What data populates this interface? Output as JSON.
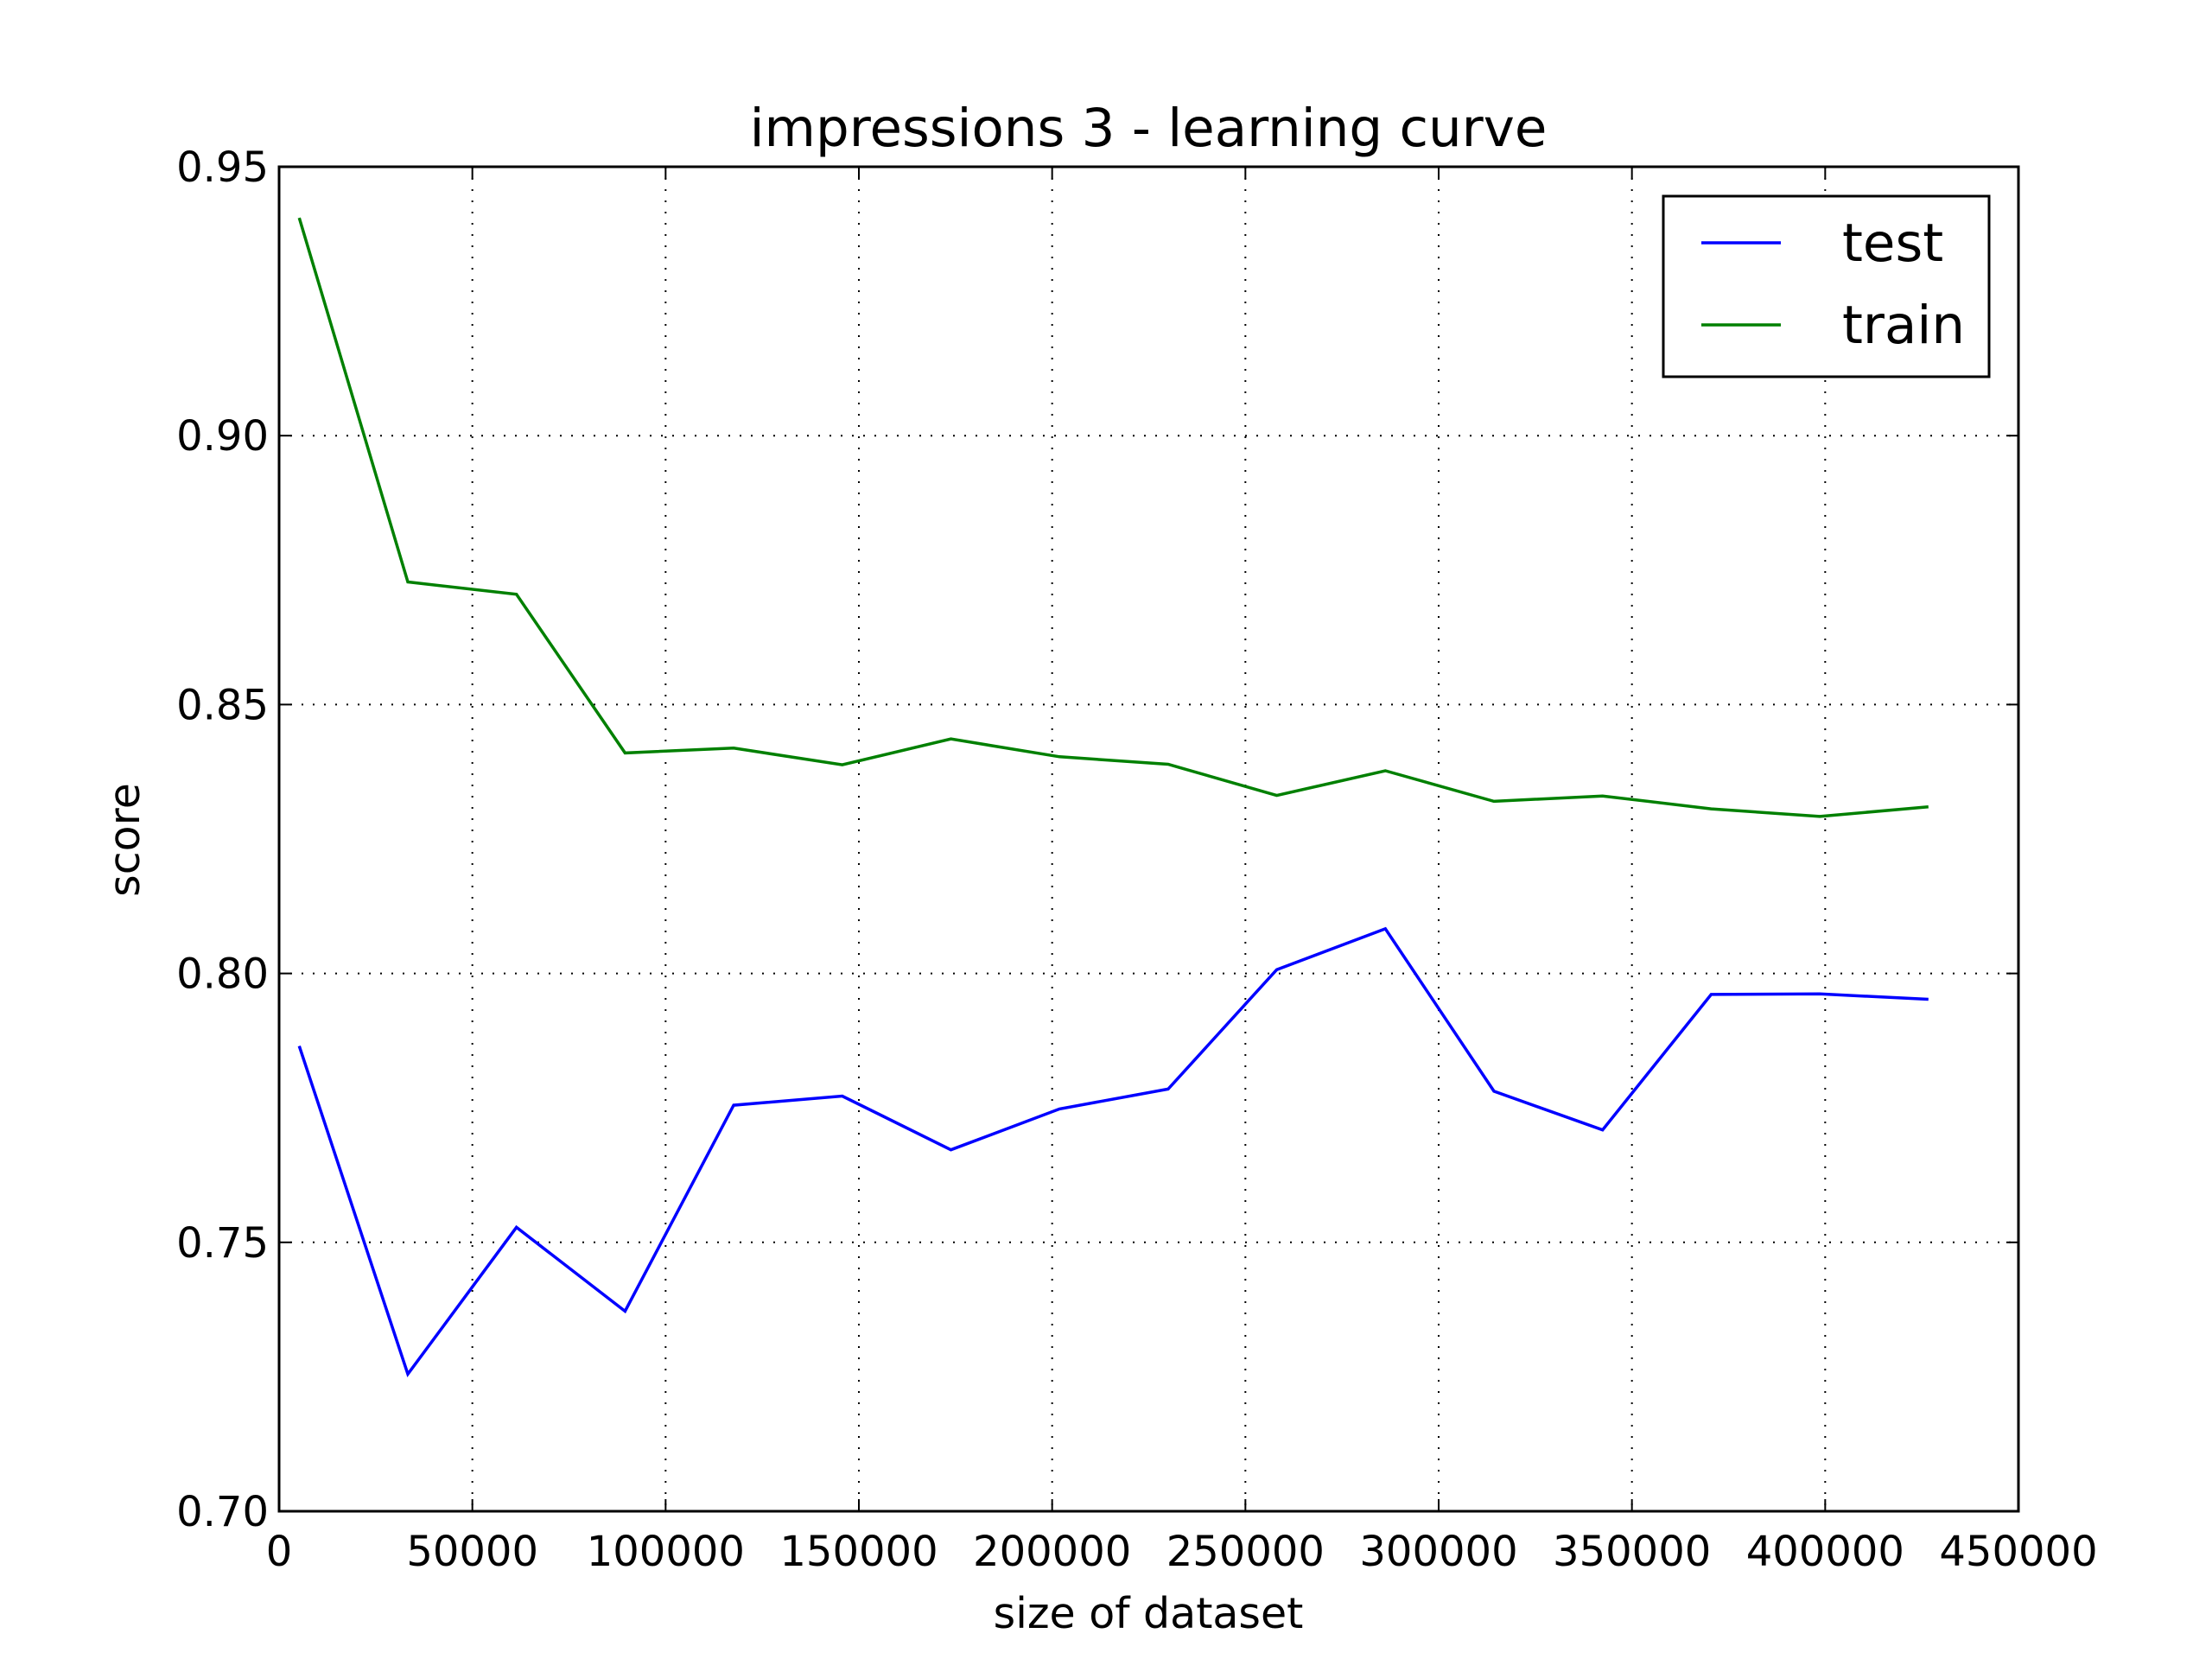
{
  "chart_data": {
    "type": "line",
    "title": "impressions 3 - learning curve",
    "xlabel": "size of dataset",
    "ylabel": "score",
    "xlim": [
      0,
      450000
    ],
    "ylim": [
      0.7,
      0.95
    ],
    "grid": true,
    "legend_position": "top-right",
    "x_ticks": [
      "0",
      "50000",
      "100000",
      "150000",
      "200000",
      "250000",
      "300000",
      "350000",
      "400000",
      "450000"
    ],
    "y_ticks": [
      "0.70",
      "0.75",
      "0.80",
      "0.85",
      "0.90",
      "0.95"
    ],
    "x": [
      5200,
      33300,
      61400,
      89500,
      117600,
      145700,
      173800,
      201900,
      230000,
      258100,
      286200,
      314300,
      342400,
      370500,
      398600,
      426700
    ],
    "series": [
      {
        "name": "test",
        "color": "#0000ff",
        "values": [
          0.7865,
          0.7255,
          0.7528,
          0.7372,
          0.7755,
          0.7772,
          0.7672,
          0.7748,
          0.7785,
          0.8007,
          0.8083,
          0.7781,
          0.7709,
          0.7961,
          0.7962,
          0.7952
        ]
      },
      {
        "name": "train",
        "color": "#008000",
        "values": [
          0.9405,
          0.8728,
          0.8705,
          0.841,
          0.8419,
          0.8388,
          0.8436,
          0.8403,
          0.8389,
          0.8331,
          0.8377,
          0.832,
          0.833,
          0.8306,
          0.8292,
          0.831
        ]
      }
    ]
  }
}
